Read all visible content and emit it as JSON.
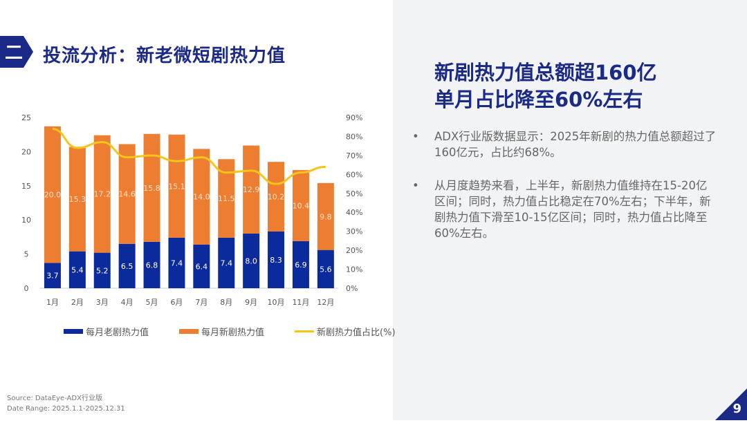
{
  "header": {
    "badge": "二",
    "title": "投流分析：新老微短剧热力值"
  },
  "headline": {
    "line1": "新剧热力值总额超160亿",
    "line2": "单月占比降至60%左右"
  },
  "bullets": [
    "ADX行业版数据显示：2025年新剧的热力值总额超过了160亿元，占比约68%。",
    "从月度趋势来看，上半年，新剧热力值维持在15-20亿区间；同时，热力值占比稳定在70%左右；下半年，新剧热力值下滑至10-15亿区间；同时，热力值占比降至60%左右。"
  ],
  "source": {
    "line1": "Source:  DataEye-ADX行业版",
    "line2": "Date Range:  2025.1.1-2025.12.31"
  },
  "page_number": "9",
  "colors": {
    "old": "#0b2a9c",
    "new": "#ed7d31",
    "line": "#f5c518",
    "title": "#1b2a86"
  },
  "chart_data": {
    "type": "bar",
    "stacked": true,
    "categories": [
      "1月",
      "2月",
      "3月",
      "4月",
      "5月",
      "6月",
      "7月",
      "8月",
      "9月",
      "10月",
      "11月",
      "12月"
    ],
    "series": [
      {
        "name": "每月老剧热力值",
        "type": "bar",
        "axis": "left",
        "values": [
          3.7,
          5.4,
          5.2,
          6.5,
          6.8,
          7.4,
          6.4,
          7.4,
          8.0,
          8.3,
          6.9,
          5.6
        ]
      },
      {
        "name": "每月新剧热力值",
        "type": "bar",
        "axis": "left",
        "values": [
          20.0,
          15.3,
          17.2,
          14.6,
          15.8,
          15.1,
          14.0,
          11.5,
          12.9,
          10.2,
          10.4,
          9.8
        ]
      },
      {
        "name": "新剧热力值占比(%)",
        "type": "line",
        "axis": "right",
        "values": [
          84,
          74,
          77,
          69,
          70,
          67,
          69,
          61,
          62,
          55,
          61,
          64
        ]
      }
    ],
    "ylim": [
      0,
      25
    ],
    "yticks": [
      "0",
      "5",
      "10",
      "15",
      "20",
      "25"
    ],
    "y2lim": [
      0,
      90
    ],
    "y2ticks": [
      "0%",
      "10%",
      "20%",
      "30%",
      "40%",
      "50%",
      "60%",
      "70%",
      "80%",
      "90%"
    ],
    "legend": "bottom",
    "grid": false,
    "data_labels": true
  }
}
